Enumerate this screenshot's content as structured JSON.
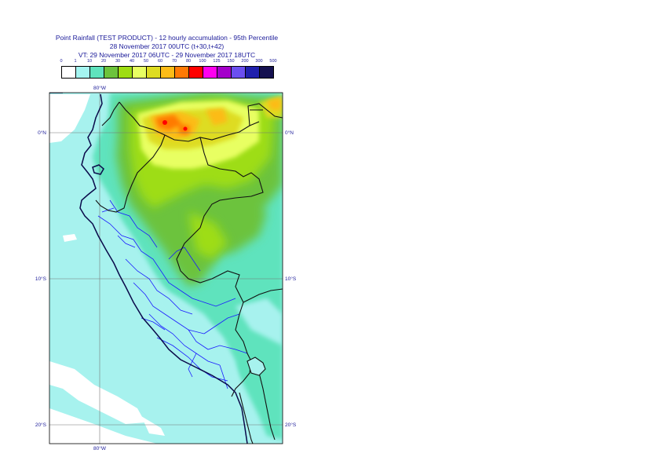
{
  "title": {
    "line1": "Point Rainfall (TEST PRODUCT) - 12 hourly accumulation - 95th Percentile",
    "line2": "28 November 2017 00UTC (t+30,t+42)",
    "line3": "VT: 29 November 2017 06UTC - 29 November 2017 18UTC"
  },
  "legend": {
    "labels": [
      "0",
      "1",
      "10",
      "20",
      "30",
      "40",
      "50",
      "60",
      "70",
      "80",
      "100",
      "125",
      "150",
      "200",
      "300",
      "500"
    ],
    "colors": [
      "#ffffff",
      "#a5f5f1",
      "#5fe3bd",
      "#6cc33c",
      "#9edd12",
      "#e8ff62",
      "#dedc21",
      "#fcbc18",
      "#ff7a05",
      "#ff0000",
      "#ff00f0",
      "#a400ca",
      "#6b4ff0",
      "#2020ad",
      "#141050"
    ]
  },
  "axes": {
    "top_lon": "80°W",
    "bottom_lon": "80°W",
    "lat_labels_left": [
      "0°N",
      "10°S",
      "20°S"
    ],
    "lat_labels_right": [
      "0°N",
      "10°S",
      "20°S"
    ]
  },
  "colors": {
    "ocean": "#a7f2ee",
    "coast": "#0a0a4a",
    "admin": "#1a1aff",
    "grid": "#777777"
  }
}
